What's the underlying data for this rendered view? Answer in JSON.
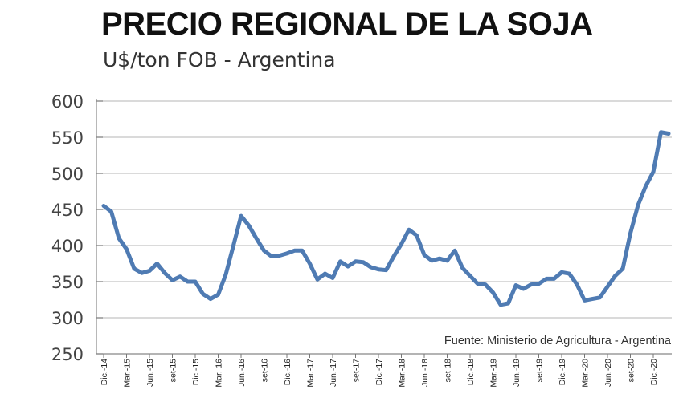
{
  "chart_data": {
    "type": "line",
    "title": "PRECIO REGIONAL DE LA SOJA",
    "subtitle": "U$/ton FOB - Argentina",
    "source": "Fuente: Ministerio de Agricultura - Argentina",
    "xlabel": "",
    "ylabel": "",
    "ylim": [
      250,
      600
    ],
    "yticks": [
      600,
      550,
      500,
      450,
      400,
      350,
      300,
      250
    ],
    "grid": true,
    "x_tick_labels": [
      "Dic.-14",
      "Mar.-15",
      "Jun.-15",
      "set-15",
      "Dic.-15",
      "Mar.-16",
      "Jun.-16",
      "set-16",
      "Dic.-16",
      "Mar.-17",
      "Jun.-17",
      "set-17",
      "Dic.-17",
      "Mar.-18",
      "Jun.-18",
      "set-18",
      "Dic.-18",
      "Mar.-19",
      "Jun.-19",
      "set-19",
      "Dic.-19",
      "Mar.-20",
      "Jun.-20",
      "set-20",
      "Dic.-20"
    ],
    "series": [
      {
        "name": "U$/ton FOB",
        "color": "#4f7bb3",
        "values": [
          455,
          447,
          410,
          395,
          368,
          362,
          365,
          375,
          362,
          352,
          357,
          350,
          350,
          333,
          326,
          332,
          360,
          400,
          441,
          428,
          410,
          393,
          385,
          386,
          389,
          393,
          393,
          375,
          353,
          361,
          355,
          378,
          371,
          378,
          377,
          370,
          367,
          366,
          385,
          402,
          422,
          414,
          387,
          379,
          382,
          379,
          393,
          369,
          358,
          347,
          346,
          335,
          318,
          320,
          345,
          340,
          346,
          347,
          354,
          354,
          363,
          361,
          346,
          324,
          326,
          328,
          343,
          358,
          368,
          417,
          456,
          482,
          502,
          557,
          555
        ]
      }
    ]
  }
}
